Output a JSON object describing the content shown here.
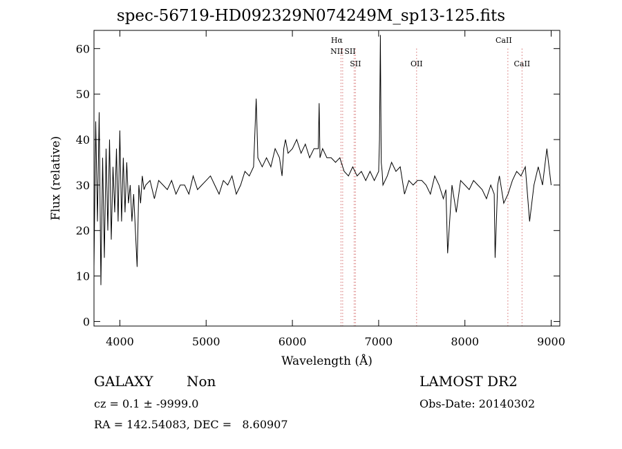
{
  "chart_data": {
    "type": "line",
    "title": "spec-56719-HD092329N074249M_sp13-125.fits",
    "xlabel": "Wavelength (Å)",
    "ylabel": "Flux (relative)",
    "xlim": [
      3700,
      9100
    ],
    "ylim": [
      -1,
      64
    ],
    "x_ticks": [
      4000,
      5000,
      6000,
      7000,
      8000,
      9000
    ],
    "y_ticks": [
      0,
      10,
      20,
      30,
      40,
      50,
      60
    ],
    "grid": false,
    "series": [
      {
        "x": [
          3700,
          3720,
          3740,
          3760,
          3780,
          3800,
          3820,
          3840,
          3860,
          3880,
          3900,
          3920,
          3940,
          3960,
          3980,
          4000,
          4020,
          4040,
          4060,
          4080,
          4100,
          4120,
          4140,
          4160,
          4180,
          4200,
          4220,
          4240,
          4260,
          4280,
          4300,
          4350,
          4400,
          4450,
          4500,
          4550,
          4600,
          4650,
          4700,
          4750,
          4800,
          4850,
          4900,
          4950,
          5000,
          5050,
          5100,
          5150,
          5200,
          5250,
          5300,
          5350,
          5400,
          5450,
          5500,
          5550,
          5580,
          5600,
          5650,
          5700,
          5750,
          5800,
          5850,
          5880,
          5900,
          5920,
          5950,
          6000,
          6050,
          6100,
          6150,
          6200,
          6250,
          6300,
          6310,
          6320,
          6350,
          6400,
          6450,
          6500,
          6550,
          6600,
          6650,
          6700,
          6750,
          6800,
          6850,
          6900,
          6950,
          7000,
          7010,
          7020,
          7030,
          7040,
          7050,
          7100,
          7150,
          7200,
          7250,
          7300,
          7350,
          7400,
          7450,
          7500,
          7550,
          7600,
          7650,
          7700,
          7750,
          7780,
          7800,
          7850,
          7900,
          7950,
          8000,
          8050,
          8100,
          8150,
          8200,
          8250,
          8300,
          8340,
          8350,
          8380,
          8400,
          8450,
          8500,
          8550,
          8600,
          8650,
          8700,
          8750,
          8800,
          8850,
          8900,
          8950,
          9000
        ],
        "y": [
          12,
          44,
          22,
          46,
          8,
          36,
          14,
          38,
          20,
          40,
          18,
          34,
          24,
          38,
          22,
          42,
          22,
          36,
          24,
          35,
          26,
          30,
          22,
          28,
          20,
          12,
          30,
          26,
          32,
          29,
          30,
          31,
          27,
          31,
          30,
          29,
          31,
          28,
          30,
          30,
          28,
          32,
          29,
          30,
          31,
          32,
          30,
          28,
          31,
          30,
          32,
          28,
          30,
          33,
          32,
          34,
          49,
          36,
          34,
          36,
          34,
          38,
          36,
          32,
          38,
          40,
          37,
          38,
          40,
          37,
          39,
          36,
          38,
          38,
          48,
          36,
          38,
          36,
          36,
          35,
          36,
          33,
          32,
          34,
          32,
          33,
          31,
          33,
          31,
          33,
          40,
          63,
          35,
          33,
          30,
          32,
          35,
          33,
          34,
          28,
          31,
          30,
          31,
          31,
          30,
          28,
          32,
          30,
          27,
          29,
          15,
          30,
          24,
          31,
          30,
          29,
          31,
          30,
          29,
          27,
          30,
          28,
          14,
          30,
          32,
          26,
          28,
          31,
          33,
          32,
          34,
          22,
          30,
          34,
          30,
          38,
          30
        ],
        "color": "#000000"
      }
    ],
    "reference_lines": [
      {
        "x": 6563,
        "color": "#d46a6a"
      },
      {
        "x": 6583,
        "color": "#d46a6a"
      },
      {
        "x": 6716,
        "color": "#d46a6a"
      },
      {
        "x": 6731,
        "color": "#d46a6a"
      },
      {
        "x": 7440,
        "color": "#d46a6a"
      },
      {
        "x": 8498,
        "color": "#d46a6a"
      },
      {
        "x": 8662,
        "color": "#d46a6a"
      }
    ],
    "line_labels": [
      {
        "text": "Hα",
        "x": 6563,
        "row": 1
      },
      {
        "text": "NII",
        "x": 6563,
        "row": 2
      },
      {
        "text": "SII",
        "x": 6716,
        "row": 2
      },
      {
        "text": "SII",
        "x": 6731,
        "row": 3
      },
      {
        "text": "OII",
        "x": 7440,
        "row": 3
      },
      {
        "text": "CaII",
        "x": 8498,
        "row": 1
      },
      {
        "text": "CaII",
        "x": 8662,
        "row": 3
      }
    ]
  },
  "info": {
    "class_label": "GALAXY",
    "subclass_label": "Non",
    "survey_label": "LAMOST DR2",
    "cz_line": "cz = 0.1 ± -9999.0",
    "obs_date": "Obs-Date: 20140302",
    "radec": "RA = 142.54083, DEC =   8.60907"
  }
}
